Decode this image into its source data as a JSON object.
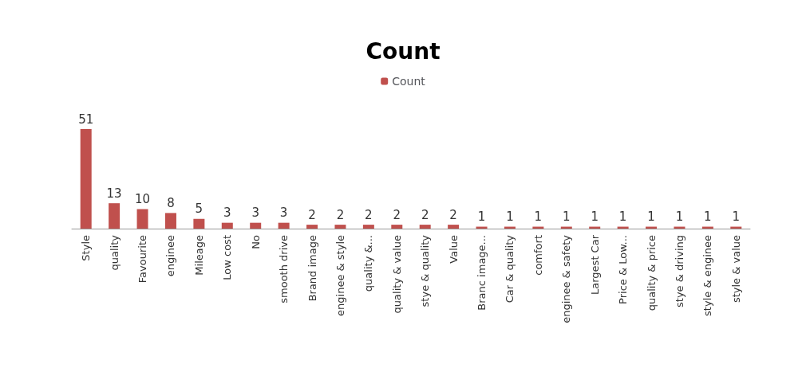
{
  "chart_data": {
    "type": "bar",
    "title": "Count",
    "categories": [
      "Style",
      "quality",
      "Favourite",
      "enginee",
      "Mileage",
      "Low cost",
      "No",
      "smooth drive",
      "Brand image",
      "enginee & style",
      "quality &...",
      "quality & value",
      "stye & quality",
      "Value",
      "Branc image...",
      "Car & quality",
      "comfort",
      "enginee & safety",
      "Largest Car",
      "Price & Low...",
      "quality & price",
      "stye & driving",
      "style & enginee",
      "style & value"
    ],
    "series": [
      {
        "name": "Count",
        "color": "#c0504d",
        "values": [
          51,
          13,
          10,
          8,
          5,
          3,
          3,
          3,
          2,
          2,
          2,
          2,
          2,
          2,
          1,
          1,
          1,
          1,
          1,
          1,
          1,
          1,
          1,
          1
        ]
      }
    ],
    "data_labels": true,
    "legend": "top"
  }
}
